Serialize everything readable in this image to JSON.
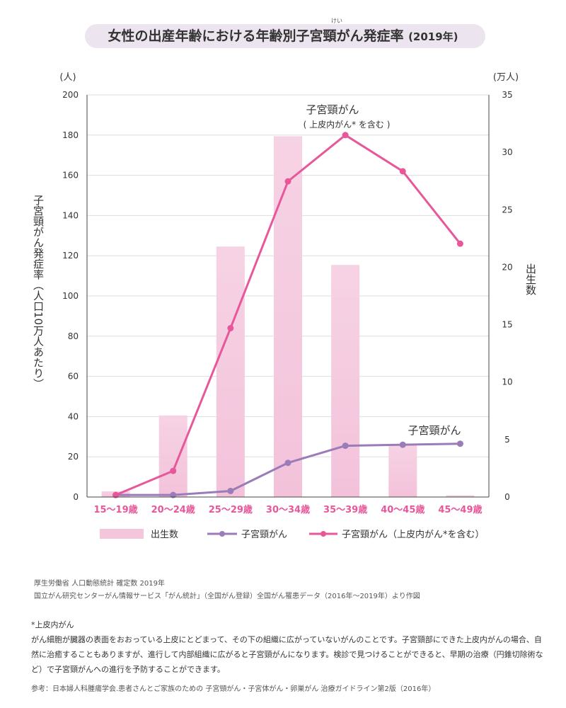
{
  "title": "女性の出産年齢における年齢別子宮頸がん発症率",
  "title_year": "(2019年)",
  "title_ruby": "けい",
  "chart_data": {
    "type": "bar",
    "categories": [
      "15〜19歳",
      "20〜24歳",
      "25〜29歳",
      "30〜34歳",
      "35〜39歳",
      "40〜45歳",
      "45〜49歳"
    ],
    "series": [
      {
        "name": "出生数",
        "kind": "bar",
        "axis": "right",
        "color": "#f4c6dc",
        "values": [
          0.5,
          7.1,
          21.8,
          31.4,
          20.2,
          4.6,
          0.15
        ]
      },
      {
        "name": "子宮頸がん",
        "kind": "line",
        "axis": "left",
        "color": "#9b7bb8",
        "values": [
          1,
          1,
          3,
          17,
          25.5,
          26,
          26.5
        ]
      },
      {
        "name": "子宮頸がん（上皮内がん*を含む）",
        "kind": "line",
        "axis": "left",
        "color": "#e8579a",
        "values": [
          1,
          13,
          84,
          157,
          180,
          162,
          126
        ]
      }
    ],
    "left_axis": {
      "unit": "(人)",
      "label": "子宮頸がん発症率（人口10万人あたり）",
      "min": 0,
      "max": 200,
      "ticks": [
        0,
        20,
        40,
        60,
        80,
        100,
        120,
        140,
        160,
        180,
        200
      ]
    },
    "right_axis": {
      "unit": "(万人)",
      "label": "出生数",
      "min": 0,
      "max": 35,
      "ticks": [
        0,
        5,
        10,
        15,
        20,
        25,
        30,
        35
      ]
    },
    "annotations": [
      {
        "text": "子宮頸がん",
        "target": "line-cervical"
      },
      {
        "text": "子宮頸がん",
        "target": "line-cis-title"
      },
      {
        "text": "( 上皮内がん* を含む )",
        "target": "line-cis-sub"
      }
    ],
    "legend": {
      "position": "bottom",
      "items": [
        "出生数",
        "子宮頸がん",
        "子宮頸がん（上皮内がん*を含む）"
      ]
    },
    "grid": true
  },
  "sources": [
    "厚生労働省 人口動態統計 確定数 2019年",
    "国立がん研究センターがん情報サービス「がん統計」（全国がん登録）全国がん罹患データ（2016年〜2019年）より作図"
  ],
  "note": {
    "heading": "*上皮内がん",
    "body": "がん細胞が臓器の表面をおおっている上皮にとどまって、その下の組織に広がっていないがんのことです。子宮頸部にできた上皮内がんの場合、自然に治癒することもありますが、進行して内部組織に広がると子宮頸がんになります。検診で見つけることができると、早期の治療（円錐切除術など）で子宮頸がんへの進行を予防することができます。",
    "reference": "参考：日本婦人科腫瘍学会.患者さんとご家族のための 子宮頸がん・子宮体がん・卵巣がん 治療ガイドライン第2版（2016年）"
  }
}
